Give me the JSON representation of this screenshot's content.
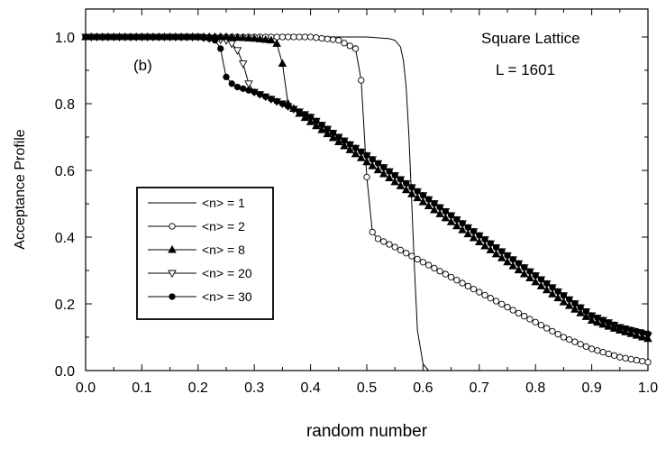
{
  "chart_data": {
    "type": "line",
    "xlabel": "random number",
    "ylabel": "Acceptance Profile",
    "xlim": [
      0.0,
      1.0
    ],
    "ylim": [
      0.0,
      1.05
    ],
    "x_ticks": [
      "0.0",
      "0.1",
      "0.2",
      "0.3",
      "0.4",
      "0.5",
      "0.6",
      "0.7",
      "0.8",
      "0.9",
      "1.0"
    ],
    "y_ticks": [
      "0.0",
      "0.2",
      "0.4",
      "0.6",
      "0.8",
      "1.0"
    ],
    "grid": false,
    "legend_position": "left-middle",
    "annotations": {
      "panel": "(b)",
      "lattice": "Square Lattice",
      "size": "L = 1601"
    },
    "series": [
      {
        "name": "<n> = 1",
        "marker": "none",
        "x": [
          0.0,
          0.1,
          0.2,
          0.3,
          0.4,
          0.5,
          0.54,
          0.55,
          0.56,
          0.565,
          0.57,
          0.575,
          0.58,
          0.585,
          0.59,
          0.6,
          0.61
        ],
        "y": [
          1.0,
          1.0,
          1.0,
          1.0,
          1.0,
          1.0,
          0.995,
          0.99,
          0.97,
          0.93,
          0.85,
          0.7,
          0.5,
          0.3,
          0.12,
          0.02,
          0.0
        ]
      },
      {
        "name": "<n> = 2",
        "marker": "open-circle",
        "x": [
          0.0,
          0.05,
          0.1,
          0.15,
          0.2,
          0.25,
          0.3,
          0.35,
          0.4,
          0.45,
          0.48,
          0.49,
          0.5,
          0.51,
          0.52,
          0.55,
          0.6,
          0.65,
          0.7,
          0.75,
          0.8,
          0.85,
          0.9,
          0.95,
          1.0
        ],
        "y": [
          1.0,
          1.0,
          1.0,
          1.0,
          1.0,
          1.0,
          1.0,
          1.0,
          1.0,
          0.99,
          0.965,
          0.87,
          0.58,
          0.415,
          0.395,
          0.37,
          0.325,
          0.28,
          0.235,
          0.19,
          0.145,
          0.1,
          0.065,
          0.04,
          0.025
        ]
      },
      {
        "name": "<n> = 8",
        "marker": "filled-triangle-up",
        "x": [
          0.0,
          0.05,
          0.1,
          0.15,
          0.2,
          0.25,
          0.3,
          0.33,
          0.34,
          0.35,
          0.36,
          0.38,
          0.4,
          0.45,
          0.5,
          0.55,
          0.6,
          0.65,
          0.7,
          0.75,
          0.8,
          0.85,
          0.9,
          0.95,
          1.0
        ],
        "y": [
          1.0,
          1.0,
          1.0,
          1.0,
          1.0,
          1.0,
          0.995,
          0.99,
          0.98,
          0.92,
          0.8,
          0.77,
          0.745,
          0.685,
          0.625,
          0.565,
          0.505,
          0.445,
          0.385,
          0.325,
          0.265,
          0.205,
          0.15,
          0.12,
          0.095
        ]
      },
      {
        "name": "<n> = 20",
        "marker": "open-triangle-down",
        "x": [
          0.0,
          0.05,
          0.1,
          0.15,
          0.2,
          0.25,
          0.26,
          0.27,
          0.28,
          0.29,
          0.3,
          0.35,
          0.4,
          0.45,
          0.5,
          0.55,
          0.6,
          0.65,
          0.7,
          0.75,
          0.8,
          0.85,
          0.9,
          0.95,
          1.0
        ],
        "y": [
          1.0,
          1.0,
          1.0,
          1.0,
          1.0,
          0.99,
          0.98,
          0.96,
          0.92,
          0.86,
          0.835,
          0.8,
          0.76,
          0.7,
          0.645,
          0.585,
          0.525,
          0.465,
          0.405,
          0.345,
          0.285,
          0.225,
          0.165,
          0.13,
          0.105
        ]
      },
      {
        "name": "<n> = 30",
        "marker": "filled-circle",
        "x": [
          0.0,
          0.05,
          0.1,
          0.15,
          0.2,
          0.22,
          0.23,
          0.24,
          0.245,
          0.25,
          0.26,
          0.27,
          0.28,
          0.3,
          0.35,
          0.4,
          0.45,
          0.5,
          0.55,
          0.6,
          0.65,
          0.7,
          0.75,
          0.8,
          0.85,
          0.9,
          0.95,
          1.0
        ],
        "y": [
          1.0,
          1.0,
          1.0,
          1.0,
          1.0,
          0.995,
          0.99,
          0.965,
          0.92,
          0.88,
          0.86,
          0.85,
          0.845,
          0.835,
          0.8,
          0.76,
          0.7,
          0.645,
          0.585,
          0.525,
          0.465,
          0.405,
          0.345,
          0.285,
          0.225,
          0.165,
          0.13,
          0.11
        ]
      }
    ]
  }
}
